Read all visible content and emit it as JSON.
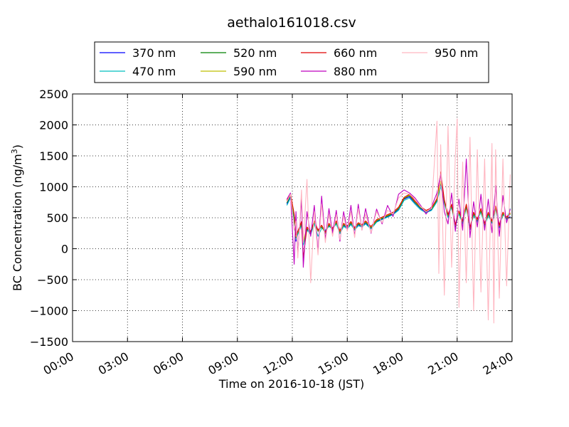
{
  "chart_data": {
    "type": "line",
    "title": "aethalo161018.csv",
    "xlabel": "Time on 2016-10-18 (JST)",
    "ylabel": "BC Concentration (ng/m",
    "ylabel_sup": "3",
    "ylabel_close": ")",
    "xlim": [
      0,
      24
    ],
    "ylim": [
      -1500,
      2500
    ],
    "xticks": [
      0,
      3,
      6,
      9,
      12,
      15,
      18,
      21,
      24
    ],
    "xtick_labels": [
      "00:00",
      "03:00",
      "06:00",
      "09:00",
      "12:00",
      "15:00",
      "18:00",
      "21:00",
      "24:00"
    ],
    "yticks": [
      2500,
      2000,
      1500,
      1000,
      500,
      0,
      -500,
      -1000,
      -1500
    ],
    "ytick_labels": [
      "2500",
      "2000",
      "1500",
      "1000",
      "500",
      "0",
      "−500",
      "−1000",
      "−1500"
    ],
    "grid": true,
    "legend_position": "top",
    "x_unit": "hours",
    "series": [
      {
        "name": "370 nm",
        "color": "#0000ff",
        "x": [
          11.7,
          11.9,
          12.1,
          12.2,
          12.3,
          12.5,
          12.6,
          12.8,
          13.0,
          13.2,
          13.4,
          13.6,
          13.8,
          14.0,
          14.2,
          14.4,
          14.6,
          14.8,
          15.0,
          15.2,
          15.4,
          15.6,
          15.8,
          16.0,
          16.3,
          16.6,
          16.9,
          17.2,
          17.5,
          17.8,
          18.1,
          18.4,
          18.7,
          19.0,
          19.3,
          19.6,
          19.9,
          20.1,
          20.3,
          20.5,
          20.7,
          20.9,
          21.1,
          21.3,
          21.5,
          21.7,
          21.9,
          22.1,
          22.3,
          22.5,
          22.7,
          22.9,
          23.1,
          23.3,
          23.5,
          23.7,
          23.9
        ],
        "y": [
          720,
          850,
          500,
          120,
          250,
          400,
          80,
          320,
          250,
          420,
          300,
          350,
          280,
          380,
          300,
          420,
          260,
          380,
          330,
          410,
          310,
          390,
          360,
          420,
          330,
          440,
          480,
          520,
          560,
          640,
          800,
          840,
          740,
          650,
          590,
          630,
          780,
          1050,
          760,
          520,
          690,
          360,
          580,
          420,
          690,
          310,
          560,
          450,
          620,
          380,
          560,
          420,
          660,
          340,
          560,
          480,
          520
        ]
      },
      {
        "name": "470 nm",
        "color": "#00bfbf",
        "x": [
          11.7,
          11.9,
          12.1,
          12.2,
          12.3,
          12.5,
          12.6,
          12.8,
          13.0,
          13.2,
          13.4,
          13.6,
          13.8,
          14.0,
          14.2,
          14.4,
          14.6,
          14.8,
          15.0,
          15.2,
          15.4,
          15.6,
          15.8,
          16.0,
          16.3,
          16.6,
          16.9,
          17.2,
          17.5,
          17.8,
          18.1,
          18.4,
          18.7,
          19.0,
          19.3,
          19.6,
          19.9,
          20.1,
          20.3,
          20.5,
          20.7,
          20.9,
          21.1,
          21.3,
          21.5,
          21.7,
          21.9,
          22.1,
          22.3,
          22.5,
          22.7,
          22.9,
          23.1,
          23.3,
          23.5,
          23.7,
          23.9
        ],
        "y": [
          700,
          820,
          460,
          150,
          230,
          380,
          60,
          300,
          230,
          400,
          200,
          330,
          300,
          360,
          320,
          400,
          240,
          360,
          320,
          390,
          300,
          370,
          350,
          400,
          320,
          430,
          470,
          510,
          550,
          620,
          780,
          820,
          720,
          630,
          580,
          620,
          760,
          1000,
          740,
          500,
          670,
          380,
          560,
          400,
          670,
          330,
          540,
          430,
          600,
          360,
          540,
          410,
          640,
          350,
          550,
          470,
          650
        ]
      },
      {
        "name": "520 nm",
        "color": "#008000",
        "x": [
          11.7,
          11.9,
          12.1,
          12.2,
          12.3,
          12.5,
          12.6,
          12.8,
          13.0,
          13.2,
          13.4,
          13.6,
          13.8,
          14.0,
          14.2,
          14.4,
          14.6,
          14.8,
          15.0,
          15.2,
          15.4,
          15.6,
          15.8,
          16.0,
          16.3,
          16.6,
          16.9,
          17.2,
          17.5,
          17.8,
          18.1,
          18.4,
          18.7,
          19.0,
          19.3,
          19.6,
          19.9,
          20.1,
          20.3,
          20.5,
          20.7,
          20.9,
          21.1,
          21.3,
          21.5,
          21.7,
          21.9,
          22.1,
          22.3,
          22.5,
          22.7,
          22.9,
          23.1,
          23.3,
          23.5,
          23.7,
          23.9
        ],
        "y": [
          740,
          860,
          520,
          180,
          260,
          420,
          100,
          330,
          260,
          430,
          280,
          360,
          250,
          390,
          310,
          430,
          270,
          390,
          340,
          420,
          320,
          400,
          370,
          430,
          340,
          450,
          490,
          530,
          570,
          650,
          810,
          860,
          750,
          660,
          600,
          640,
          790,
          1070,
          770,
          530,
          700,
          370,
          590,
          430,
          700,
          320,
          570,
          460,
          630,
          390,
          570,
          430,
          670,
          360,
          570,
          490,
          560
        ]
      },
      {
        "name": "590 nm",
        "color": "#bfbf00",
        "x": [
          11.7,
          11.9,
          12.1,
          12.2,
          12.3,
          12.5,
          12.6,
          12.8,
          13.0,
          13.2,
          13.4,
          13.6,
          13.8,
          14.0,
          14.2,
          14.4,
          14.6,
          14.8,
          15.0,
          15.2,
          15.4,
          15.6,
          15.8,
          16.0,
          16.3,
          16.6,
          16.9,
          17.2,
          17.5,
          17.8,
          18.1,
          18.4,
          18.7,
          19.0,
          19.3,
          19.6,
          19.9,
          20.1,
          20.3,
          20.5,
          20.7,
          20.9,
          21.1,
          21.3,
          21.5,
          21.7,
          21.9,
          22.1,
          22.3,
          22.5,
          22.7,
          22.9,
          23.1,
          23.3,
          23.5,
          23.7,
          23.9
        ],
        "y": [
          760,
          870,
          540,
          200,
          270,
          430,
          110,
          340,
          270,
          440,
          290,
          370,
          260,
          400,
          320,
          440,
          280,
          400,
          350,
          430,
          330,
          410,
          380,
          440,
          350,
          460,
          500,
          540,
          580,
          660,
          820,
          870,
          760,
          670,
          610,
          650,
          800,
          1090,
          780,
          540,
          710,
          380,
          600,
          440,
          710,
          330,
          580,
          470,
          640,
          400,
          580,
          440,
          680,
          370,
          580,
          500,
          570
        ]
      },
      {
        "name": "660 nm",
        "color": "#e00000",
        "x": [
          11.7,
          11.9,
          12.1,
          12.2,
          12.3,
          12.5,
          12.6,
          12.8,
          13.0,
          13.2,
          13.4,
          13.6,
          13.8,
          14.0,
          14.2,
          14.4,
          14.6,
          14.8,
          15.0,
          15.2,
          15.4,
          15.6,
          15.8,
          16.0,
          16.3,
          16.6,
          16.9,
          17.2,
          17.5,
          17.8,
          18.1,
          18.4,
          18.7,
          19.0,
          19.3,
          19.6,
          19.9,
          20.1,
          20.3,
          20.5,
          20.7,
          20.9,
          21.1,
          21.3,
          21.5,
          21.7,
          21.9,
          22.1,
          22.3,
          22.5,
          22.7,
          22.9,
          23.1,
          23.3,
          23.5,
          23.7,
          23.9
        ],
        "y": [
          780,
          890,
          560,
          220,
          280,
          440,
          -150,
          350,
          280,
          450,
          300,
          380,
          270,
          410,
          330,
          450,
          290,
          410,
          360,
          440,
          340,
          420,
          390,
          450,
          360,
          470,
          510,
          550,
          590,
          670,
          830,
          880,
          770,
          680,
          620,
          660,
          810,
          1240,
          790,
          550,
          720,
          390,
          610,
          450,
          720,
          340,
          590,
          480,
          650,
          410,
          590,
          450,
          690,
          380,
          590,
          510,
          580
        ]
      },
      {
        "name": "880 nm",
        "color": "#bf00bf",
        "x": [
          11.7,
          11.9,
          12.1,
          12.2,
          12.3,
          12.5,
          12.6,
          12.8,
          13.0,
          13.2,
          13.4,
          13.6,
          13.8,
          14.0,
          14.2,
          14.4,
          14.6,
          14.8,
          15.0,
          15.2,
          15.4,
          15.6,
          15.8,
          16.0,
          16.3,
          16.6,
          16.9,
          17.2,
          17.5,
          17.8,
          18.1,
          18.4,
          18.7,
          19.0,
          19.3,
          19.6,
          19.9,
          20.1,
          20.3,
          20.5,
          20.7,
          20.9,
          21.1,
          21.3,
          21.5,
          21.7,
          21.9,
          22.1,
          22.3,
          22.5,
          22.7,
          22.9,
          23.1,
          23.3,
          23.5,
          23.7,
          23.9
        ],
        "y": [
          800,
          900,
          -250,
          600,
          -100,
          820,
          -300,
          600,
          200,
          700,
          -50,
          850,
          150,
          650,
          250,
          620,
          120,
          600,
          300,
          700,
          200,
          720,
          300,
          650,
          250,
          640,
          400,
          700,
          520,
          880,
          950,
          900,
          820,
          700,
          560,
          680,
          900,
          1200,
          600,
          400,
          900,
          280,
          800,
          300,
          1450,
          180,
          760,
          350,
          880,
          300,
          800,
          260,
          1020,
          200,
          860,
          420,
          640
        ]
      },
      {
        "name": "950 nm",
        "color": "#ffb6c1",
        "x": [
          11.7,
          11.9,
          12.1,
          12.2,
          12.3,
          12.5,
          12.6,
          12.8,
          13.0,
          13.2,
          13.4,
          13.6,
          13.8,
          14.0,
          14.2,
          14.4,
          14.6,
          14.8,
          15.0,
          15.2,
          15.4,
          15.6,
          15.8,
          16.0,
          16.3,
          16.6,
          16.9,
          17.2,
          17.5,
          17.8,
          18.1,
          18.4,
          18.7,
          19.0,
          19.3,
          19.6,
          19.9,
          20.0,
          20.1,
          20.3,
          20.5,
          20.7,
          20.9,
          21.0,
          21.1,
          21.3,
          21.5,
          21.7,
          21.9,
          22.1,
          22.3,
          22.5,
          22.7,
          22.9,
          23.0,
          23.1,
          23.3,
          23.5,
          23.7,
          23.9
        ],
        "y": [
          760,
          880,
          300,
          450,
          -150,
          950,
          100,
          1120,
          -550,
          600,
          -100,
          720,
          100,
          560,
          200,
          550,
          150,
          520,
          280,
          600,
          180,
          650,
          300,
          560,
          260,
          600,
          420,
          620,
          560,
          820,
          900,
          880,
          800,
          680,
          600,
          650,
          2060,
          -400,
          1680,
          -750,
          1980,
          -300,
          1500,
          2100,
          -950,
          1400,
          -550,
          1800,
          -1000,
          1600,
          -700,
          1450,
          -1150,
          1700,
          -1200,
          1600,
          -800,
          1450,
          -600,
          1200
        ]
      }
    ]
  }
}
